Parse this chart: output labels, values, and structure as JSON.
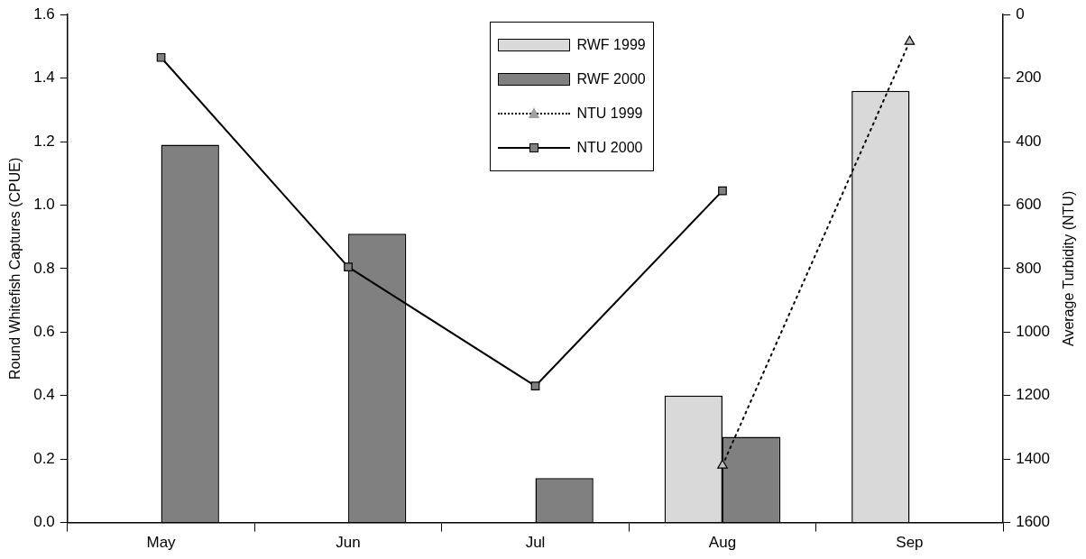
{
  "chart_data": {
    "type": "bar",
    "categories": [
      "May",
      "Jun",
      "Jul",
      "Aug",
      "Sep"
    ],
    "ylabel": "Round Whitefish Captures (CPUE)",
    "y2label": "Average Turbidity (NTU)",
    "ylim": [
      0,
      1.6
    ],
    "yticks": [
      {
        "value": 0,
        "label": "0.0"
      },
      {
        "value": 0.2,
        "label": "0.2"
      },
      {
        "value": 0.4,
        "label": "0.4"
      },
      {
        "value": 0.6,
        "label": "0.6"
      },
      {
        "value": 0.8,
        "label": "0.8"
      },
      {
        "value": 1,
        "label": "1.0"
      },
      {
        "value": 1.2,
        "label": "1.2"
      },
      {
        "value": 1.4,
        "label": "1.4"
      },
      {
        "value": 1.6,
        "label": "1.6"
      }
    ],
    "y2lim": [
      1600,
      0
    ],
    "y2ticks": [
      0,
      200,
      400,
      600,
      800,
      1000,
      1200,
      1400,
      1600
    ],
    "grid": false,
    "legend": "top",
    "series": [
      {
        "name": "RWF 1999",
        "color": "#d9d9d9",
        "values": [
          null,
          null,
          null,
          0.4,
          1.36
        ]
      },
      {
        "name": "RWF 2000",
        "color": "#808080",
        "values": [
          1.19,
          0.91,
          0.14,
          0.27,
          null
        ]
      },
      {
        "name": "NTU 1999",
        "type": "line",
        "axis": "y2",
        "color": "#000000",
        "marker": "triangle",
        "line_style": "dotted",
        "values": [
          null,
          null,
          null,
          1420,
          85
        ]
      },
      {
        "name": "NTU 2000",
        "type": "line",
        "axis": "y2",
        "color": "#000000",
        "marker": "square",
        "line_style": "solid",
        "values": [
          135,
          795,
          1170,
          555,
          null
        ]
      }
    ]
  }
}
